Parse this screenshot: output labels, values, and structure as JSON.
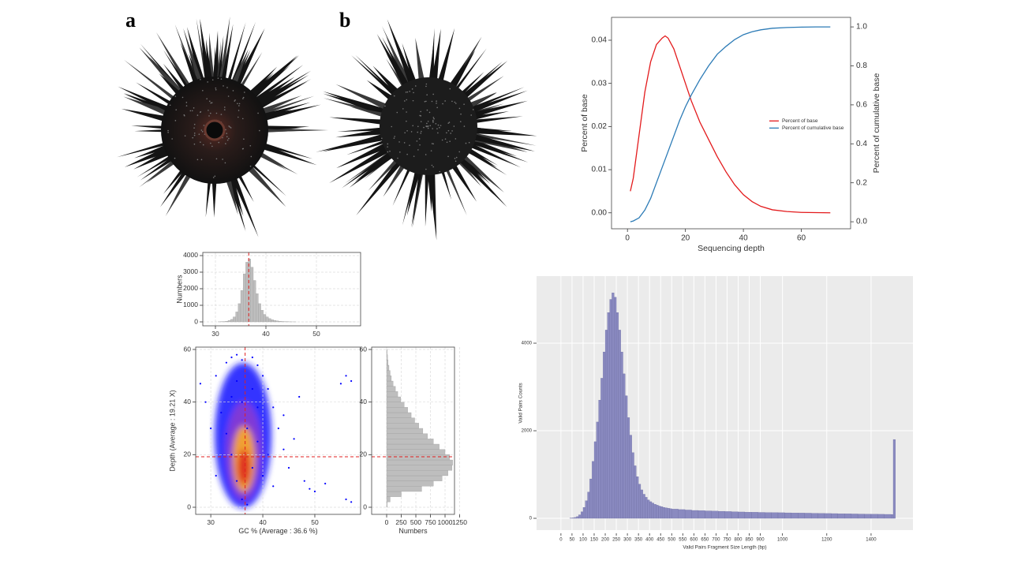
{
  "panel_labels": [
    "a",
    "b"
  ],
  "chart_data": [
    {
      "type": "line",
      "xlabel": "Sequencing depth",
      "ylabel": "Percent of base",
      "y2label": "Percent of cumulative base",
      "x": [
        1,
        2,
        4,
        6,
        8,
        10,
        12,
        13,
        14,
        16,
        18,
        20,
        22,
        25,
        28,
        31,
        34,
        37,
        40,
        43,
        46,
        50,
        55,
        60,
        65,
        70
      ],
      "series": [
        {
          "name": "Percent of base",
          "color": "#e31a1c",
          "values": [
            0.005,
            0.008,
            0.018,
            0.028,
            0.035,
            0.039,
            0.0405,
            0.041,
            0.0405,
            0.038,
            0.034,
            0.03,
            0.026,
            0.021,
            0.017,
            0.013,
            0.0095,
            0.0065,
            0.0042,
            0.0026,
            0.0015,
            0.0007,
            0.0003,
            0.0001,
            5e-05,
            0.0
          ]
        },
        {
          "name": "Percent of cumulative base",
          "color": "#2c7bb6",
          "axis": "y2",
          "values": [
            0.0,
            0.004,
            0.02,
            0.06,
            0.12,
            0.2,
            0.28,
            0.32,
            0.36,
            0.44,
            0.52,
            0.59,
            0.65,
            0.73,
            0.8,
            0.86,
            0.9,
            0.935,
            0.96,
            0.975,
            0.985,
            0.993,
            0.997,
            0.999,
            1.0,
            1.0
          ]
        }
      ],
      "xlim": [
        -5.5,
        77
      ],
      "xticks": [
        0,
        20,
        40,
        60
      ],
      "ylim": [
        -0.0037,
        0.0453
      ],
      "yticks": [
        {
          "value": 0,
          "label": "0.00"
        },
        0.01,
        0.02,
        0.03,
        0.04
      ],
      "y2lim": [
        -0.036,
        1.049
      ],
      "y2ticks": [
        {
          "value": 0,
          "label": "0.0"
        },
        0.2,
        0.4,
        0.6,
        0.8,
        {
          "value": 1,
          "label": "1.0"
        }
      ],
      "legend": "right"
    },
    {
      "type": "histogram",
      "ylabel": "Numbers",
      "color": "#bebebe",
      "grid": true,
      "bins": [
        30,
        30.5,
        31,
        31.5,
        32,
        32.5,
        33,
        33.5,
        34,
        34.5,
        35,
        35.5,
        36,
        36.5,
        37,
        37.5,
        38,
        38.5,
        39,
        39.5,
        40,
        40.5,
        41,
        41.5,
        42,
        42.5,
        43,
        43.5,
        44,
        44.5,
        45,
        45.5,
        46
      ],
      "values": [
        0,
        5,
        10,
        20,
        40,
        80,
        150,
        300,
        600,
        1100,
        1900,
        2900,
        3600,
        3800,
        3300,
        2500,
        1700,
        1100,
        700,
        450,
        300,
        200,
        130,
        90,
        60,
        40,
        25,
        15,
        10,
        6,
        3,
        2
      ],
      "xlim": [
        27.5,
        58.75
      ],
      "xticks": [
        30,
        40,
        50
      ],
      "ylim": [
        -238,
        4190
      ],
      "yticks": [
        0,
        1000,
        2000,
        3000,
        4000
      ],
      "vline": 36.6
    },
    {
      "type": "scatter",
      "xlabel": "GC % (Average : 36.6 %)",
      "ylabel": "Depth (Average : 19.21 X)",
      "color": "#0000ff",
      "grid": true,
      "x": [
        28,
        29,
        30,
        31,
        31,
        32,
        33,
        34,
        35,
        36,
        38,
        39,
        40,
        41,
        42,
        43,
        44,
        45,
        46,
        47,
        48,
        49,
        50,
        52,
        55,
        56,
        57,
        56,
        57,
        34,
        35,
        36,
        37,
        38,
        39,
        40,
        33,
        34,
        38,
        41,
        42,
        44,
        36,
        37,
        35,
        39
      ],
      "values": [
        47,
        40,
        30,
        12,
        50,
        36,
        55,
        57,
        58,
        56,
        57,
        54,
        50,
        45,
        38,
        30,
        22,
        15,
        26,
        42,
        10,
        7,
        6,
        9,
        47,
        50,
        48,
        3,
        2,
        20,
        10,
        40,
        30,
        15,
        25,
        12,
        28,
        42,
        45,
        20,
        8,
        35,
        3,
        1,
        48,
        38
      ],
      "xlim": [
        27.1,
        58.8
      ],
      "xticks": [
        30,
        40,
        50
      ],
      "ylim": [
        -2.7,
        60.9
      ],
      "yticks": [
        0,
        20,
        40,
        60
      ],
      "vline": 36.6,
      "hline": 19.21
    },
    {
      "type": "histogram",
      "orientation": "horizontal",
      "xlabel": "Numbers",
      "color": "#bebebe",
      "grid": true,
      "bins": [
        0,
        2,
        4,
        6,
        8,
        10,
        12,
        14,
        16,
        18,
        20,
        22,
        24,
        26,
        28,
        30,
        32,
        34,
        36,
        38,
        40,
        42,
        44,
        46,
        48,
        50,
        52,
        54,
        56,
        58,
        60
      ],
      "values": [
        10,
        60,
        250,
        600,
        800,
        950,
        1050,
        1120,
        1130,
        1080,
        1000,
        900,
        800,
        700,
        620,
        550,
        480,
        420,
        360,
        300,
        240,
        190,
        150,
        110,
        80,
        60,
        40,
        25,
        15,
        8
      ],
      "xlim": [
        -257,
        1162
      ],
      "xticks": [
        0,
        250,
        500,
        750,
        1000,
        1250
      ],
      "ylim": [
        -2.7,
        60.9
      ],
      "yticks": [
        0,
        20,
        40,
        60
      ],
      "hline": 19.21
    },
    {
      "type": "histogram",
      "xlabel": "Valid Pairs Fragment Size Length (bp)",
      "ylabel": "Valid Pairs Counts",
      "color": "#8a8ac0",
      "background": "#ebebeb",
      "grid": true,
      "bins": [
        0,
        10,
        20,
        30,
        40,
        50,
        60,
        70,
        80,
        90,
        100,
        110,
        120,
        130,
        140,
        150,
        160,
        170,
        180,
        190,
        200,
        210,
        220,
        230,
        240,
        250,
        260,
        270,
        280,
        290,
        300,
        310,
        320,
        330,
        340,
        350,
        360,
        370,
        380,
        390,
        400,
        410,
        420,
        430,
        440,
        450,
        460,
        470,
        480,
        490,
        500,
        530,
        560,
        590,
        620,
        650,
        680,
        710,
        740,
        770,
        800,
        830,
        860,
        890,
        920,
        950,
        980,
        1010,
        1040,
        1070,
        1100,
        1130,
        1160,
        1190,
        1220,
        1250,
        1280,
        1310,
        1340,
        1370,
        1400,
        1430,
        1460,
        1490,
        1500,
        1510
      ],
      "values": [
        0,
        0,
        0,
        0,
        5,
        10,
        20,
        40,
        80,
        150,
        250,
        400,
        600,
        900,
        1300,
        1750,
        2200,
        2700,
        3200,
        3800,
        4300,
        4700,
        5000,
        5150,
        5050,
        4700,
        4300,
        3800,
        3300,
        2800,
        2300,
        1900,
        1500,
        1200,
        950,
        780,
        650,
        550,
        480,
        420,
        380,
        350,
        320,
        300,
        280,
        265,
        250,
        240,
        230,
        220,
        210,
        200,
        190,
        180,
        175,
        170,
        165,
        160,
        155,
        150,
        145,
        140,
        138,
        135,
        132,
        130,
        128,
        125,
        122,
        120,
        118,
        115,
        112,
        110,
        108,
        105,
        103,
        100,
        98,
        96,
        94,
        92,
        90,
        88,
        1800
      ],
      "xlim": [
        -110,
        1589
      ],
      "xticks": [
        0,
        50,
        100,
        150,
        200,
        250,
        300,
        350,
        400,
        450,
        500,
        550,
        600,
        650,
        700,
        750,
        800,
        850,
        900,
        1000,
        1200,
        1400
      ],
      "ylim": [
        -270,
        5532
      ],
      "yticks": [
        0,
        2000,
        4000
      ]
    }
  ]
}
